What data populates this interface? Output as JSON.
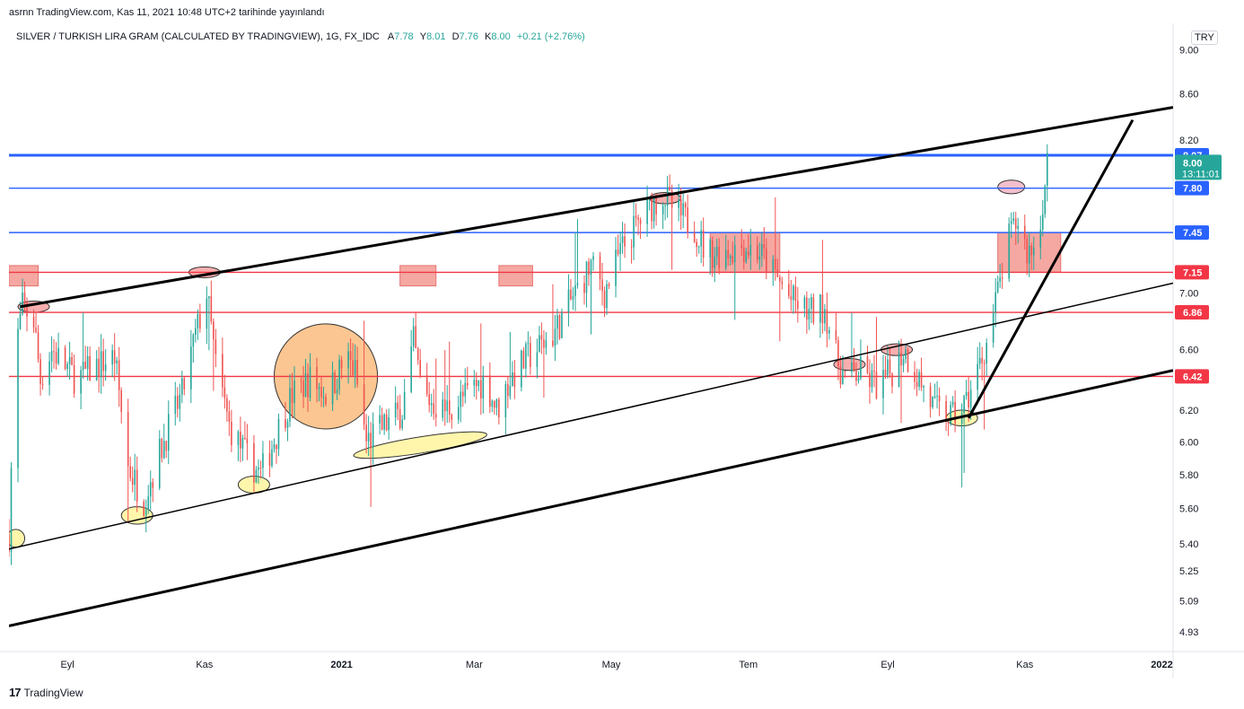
{
  "header": {
    "published": "asrnn TradingView.com, Kas 11, 2021 10:48 UTC+2 tarihinde yayınlandı"
  },
  "legend": {
    "symbol": "SILVER / TURKISH LIRA GRAM (CALCULATED BY TRADINGVIEW), 1G, FX_IDC",
    "o_label": "A",
    "o_value": "7.78",
    "h_label": "Y",
    "h_value": "8.01",
    "l_label": "D",
    "l_value": "7.76",
    "c_label": "K",
    "c_value": "8.00",
    "change": "+0.21 (+2.76%)"
  },
  "currency": "TRY",
  "footer": {
    "brand": "TradingView",
    "logo": "tv-logo-icon"
  },
  "colors": {
    "up": "#26a69a",
    "down": "#ef5350",
    "blue_line": "#2962ff",
    "red_line": "#f23645",
    "zone": "#f28b82"
  },
  "chart_data": {
    "type": "candlestick",
    "y_scale": "log",
    "ylim": [
      4.83,
      9.25
    ],
    "xlim": [
      "2020-08-06",
      "2022-01-06"
    ],
    "x_ticks": [
      {
        "date": "2020-09-01",
        "label": "Eyl"
      },
      {
        "date": "2020-11-01",
        "label": "Kas"
      },
      {
        "date": "2021-01-01",
        "label": "2021"
      },
      {
        "date": "2021-03-01",
        "label": "Mar"
      },
      {
        "date": "2021-05-01",
        "label": "May"
      },
      {
        "date": "2021-07-01",
        "label": "Tem"
      },
      {
        "date": "2021-09-01",
        "label": "Eyl"
      },
      {
        "date": "2021-11-01",
        "label": "Kas"
      },
      {
        "date": "2022-01-01",
        "label": "2022"
      }
    ],
    "y_ticks": [
      "4.93",
      "5.09",
      "5.25",
      "5.40",
      "5.60",
      "5.80",
      "6.00",
      "6.20",
      "6.42",
      "6.60",
      "6.86",
      "7.00",
      "7.15",
      "7.45",
      "7.80",
      "8.07",
      "8.20",
      "8.60",
      "9.00"
    ],
    "horizontal_levels": [
      {
        "value": 8.07,
        "label": "8.07",
        "color": "#2962ff",
        "thick": true
      },
      {
        "value": 7.8,
        "label": "7.80",
        "color": "#2962ff"
      },
      {
        "value": 7.45,
        "label": "7.45",
        "color": "#2962ff"
      },
      {
        "value": 7.15,
        "label": "7.15",
        "color": "#f23645"
      },
      {
        "value": 6.86,
        "label": "6.86",
        "color": "#f23645"
      },
      {
        "value": 6.42,
        "label": "6.42",
        "color": "#f23645"
      }
    ],
    "last_price": {
      "value": 8.0,
      "label": "8.00",
      "countdown": "13:11:01",
      "color": "#26a69a"
    },
    "trend_lines": [
      {
        "from": [
          "2020-08-11",
          6.9
        ],
        "to": [
          "2022-01-06",
          8.48
        ],
        "width": 3
      },
      {
        "from": [
          "2020-08-06",
          5.37
        ],
        "to": [
          "2022-01-06",
          7.07
        ],
        "width": 1.5
      },
      {
        "from": [
          "2020-08-06",
          4.96
        ],
        "to": [
          "2022-01-06",
          6.46
        ],
        "width": 3
      },
      {
        "from": [
          "2021-10-07",
          6.15
        ],
        "to": [
          "2021-12-19",
          8.37
        ],
        "width": 3
      }
    ],
    "zones": [
      {
        "x": [
          "2020-08-06",
          "2020-08-19"
        ],
        "y": [
          7.05,
          7.2
        ]
      },
      {
        "x": [
          "2021-01-27",
          "2021-02-12"
        ],
        "y": [
          7.05,
          7.2
        ]
      },
      {
        "x": [
          "2021-03-12",
          "2021-03-27"
        ],
        "y": [
          7.05,
          7.2
        ]
      },
      {
        "x": [
          "2021-06-14",
          "2021-07-15"
        ],
        "y": [
          7.15,
          7.45
        ]
      },
      {
        "x": [
          "2021-10-20",
          "2021-11-17"
        ],
        "y": [
          7.15,
          7.45
        ]
      }
    ],
    "ellipses": [
      {
        "center": [
          "2020-12-25",
          6.42
        ],
        "rx_days": 23,
        "ry_value": [
          6.1,
          6.8
        ],
        "fill": "#f9b36d",
        "opacity": 0.75
      },
      {
        "center": [
          "2021-02-05",
          5.98
        ],
        "rx_days": 30,
        "ry_value": [
          5.93,
          6.03
        ],
        "rotate": -9,
        "fill": "#fff59d",
        "opacity": 0.85
      },
      {
        "center": [
          "2020-08-09",
          5.43
        ],
        "rx_days": 4,
        "ry_value": [
          5.38,
          5.48
        ],
        "fill": "#fff59d",
        "opacity": 0.85
      },
      {
        "center": [
          "2020-10-02",
          5.56
        ],
        "rx_days": 7,
        "ry_value": [
          5.51,
          5.61
        ],
        "fill": "#fff59d",
        "opacity": 0.85
      },
      {
        "center": [
          "2020-11-23",
          5.74
        ],
        "rx_days": 7,
        "ry_value": [
          5.69,
          5.79
        ],
        "fill": "#fff59d",
        "opacity": 0.85
      },
      {
        "center": [
          "2021-10-04",
          6.15
        ],
        "rx_days": 7,
        "ry_value": [
          6.1,
          6.2
        ],
        "fill": "#fff59d",
        "opacity": 0.85
      },
      {
        "center": [
          "2020-08-17",
          6.9
        ],
        "rx_days": 7,
        "ry_value": [
          6.86,
          6.94
        ],
        "fill": "#f8a5a5",
        "opacity": 0.9
      },
      {
        "center": [
          "2020-11-01",
          7.15
        ],
        "rx_days": 7,
        "ry_value": [
          7.11,
          7.19
        ],
        "fill": "#f8a5a5",
        "opacity": 0.9
      },
      {
        "center": [
          "2021-05-25",
          7.72
        ],
        "rx_days": 7,
        "ry_value": [
          7.68,
          7.77
        ],
        "fill": "#f8a5a5",
        "opacity": 0.9
      },
      {
        "center": [
          "2021-08-15",
          6.5
        ],
        "rx_days": 7,
        "ry_value": [
          6.46,
          6.54
        ],
        "fill": "#f8a5a5",
        "opacity": 0.9
      },
      {
        "center": [
          "2021-09-05",
          6.6
        ],
        "rx_days": 7,
        "ry_value": [
          6.56,
          6.64
        ],
        "fill": "#f8a5a5",
        "opacity": 0.9
      },
      {
        "center": [
          "2021-10-26",
          7.81
        ],
        "rx_days": 6,
        "ry_value": [
          7.76,
          7.87
        ],
        "fill": "#f3b8c8",
        "opacity": 0.9
      }
    ],
    "price_path": [
      [
        "2020-08-06",
        5.45
      ],
      [
        "2020-08-09",
        6.6
      ],
      [
        "2020-08-12",
        6.9
      ],
      [
        "2020-08-17",
        6.8
      ],
      [
        "2020-08-20",
        6.4
      ],
      [
        "2020-08-25",
        6.6
      ],
      [
        "2020-09-05",
        6.4
      ],
      [
        "2020-09-15",
        6.5
      ],
      [
        "2020-09-22",
        6.55
      ],
      [
        "2020-09-28",
        5.85
      ],
      [
        "2020-10-05",
        5.65
      ],
      [
        "2020-10-15",
        6.05
      ],
      [
        "2020-10-22",
        6.3
      ],
      [
        "2020-10-28",
        6.7
      ],
      [
        "2020-11-02",
        7.0
      ],
      [
        "2020-11-06",
        6.5
      ],
      [
        "2020-11-12",
        6.1
      ],
      [
        "2020-11-20",
        5.9
      ],
      [
        "2020-11-26",
        5.8
      ],
      [
        "2020-12-03",
        6.05
      ],
      [
        "2020-12-10",
        6.3
      ],
      [
        "2020-12-18",
        6.4
      ],
      [
        "2020-12-26",
        6.3
      ],
      [
        "2021-01-03",
        6.55
      ],
      [
        "2021-01-07",
        6.45
      ],
      [
        "2021-01-12",
        6.0
      ],
      [
        "2021-01-20",
        6.1
      ],
      [
        "2021-01-28",
        6.2
      ],
      [
        "2021-02-02",
        6.65
      ],
      [
        "2021-02-06",
        6.3
      ],
      [
        "2021-02-15",
        6.2
      ],
      [
        "2021-02-22",
        6.25
      ],
      [
        "2021-03-01",
        6.35
      ],
      [
        "2021-03-06",
        6.4
      ],
      [
        "2021-03-11",
        6.2
      ],
      [
        "2021-03-17",
        6.4
      ],
      [
        "2021-03-25",
        6.55
      ],
      [
        "2021-04-05",
        6.7
      ],
      [
        "2021-04-15",
        7.0
      ],
      [
        "2021-04-22",
        7.2
      ],
      [
        "2021-04-28",
        7.0
      ],
      [
        "2021-05-05",
        7.3
      ],
      [
        "2021-05-12",
        7.5
      ],
      [
        "2021-05-18",
        7.65
      ],
      [
        "2021-05-24",
        7.75
      ],
      [
        "2021-05-30",
        7.6
      ],
      [
        "2021-06-07",
        7.5
      ],
      [
        "2021-06-12",
        7.3
      ],
      [
        "2021-06-20",
        7.3
      ],
      [
        "2021-06-28",
        7.35
      ],
      [
        "2021-07-06",
        7.3
      ],
      [
        "2021-07-12",
        7.15
      ],
      [
        "2021-07-20",
        6.95
      ],
      [
        "2021-07-28",
        6.85
      ],
      [
        "2021-08-04",
        6.9
      ],
      [
        "2021-08-09",
        6.55
      ],
      [
        "2021-08-13",
        6.4
      ],
      [
        "2021-08-20",
        6.45
      ],
      [
        "2021-08-28",
        6.35
      ],
      [
        "2021-09-05",
        6.5
      ],
      [
        "2021-09-08",
        6.6
      ],
      [
        "2021-09-15",
        6.4
      ],
      [
        "2021-09-22",
        6.2
      ],
      [
        "2021-09-30",
        6.15
      ],
      [
        "2021-10-06",
        6.25
      ],
      [
        "2021-10-12",
        6.5
      ],
      [
        "2021-10-16",
        6.7
      ],
      [
        "2021-10-20",
        7.0
      ],
      [
        "2021-10-25",
        7.4
      ],
      [
        "2021-10-29",
        7.55
      ],
      [
        "2021-11-02",
        7.3
      ],
      [
        "2021-11-06",
        7.35
      ],
      [
        "2021-11-10",
        7.8
      ],
      [
        "2021-11-11",
        8.0
      ]
    ]
  }
}
